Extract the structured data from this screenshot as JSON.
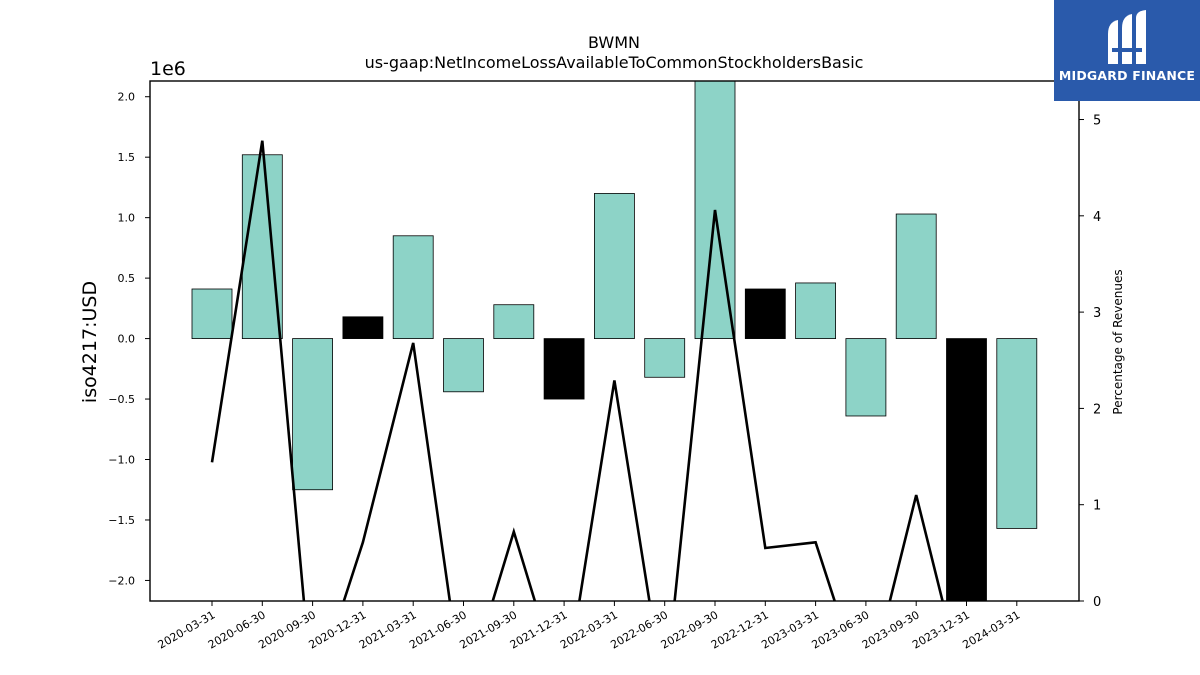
{
  "chart_data": {
    "type": "bar",
    "title": "BWMN",
    "subtitle": "us-gaap:NetIncomeLossAvailableToCommonStockholdersBasic",
    "ylabel": "iso4217:USD",
    "y_scale_label": "1e6",
    "y2label": "Percentage of Revenues",
    "ylim": [
      -2.17,
      2.13
    ],
    "y2lim": [
      0,
      5.4
    ],
    "yticks": [
      "−2.0",
      "−1.5",
      "−1.0",
      "−0.5",
      "0.0",
      "0.5",
      "1.0",
      "1.5",
      "2.0"
    ],
    "ytick_values": [
      -2.0,
      -1.5,
      -1.0,
      -0.5,
      0.0,
      0.5,
      1.0,
      1.5,
      2.0
    ],
    "y2ticks": [
      "0",
      "1",
      "2",
      "3",
      "4",
      "5"
    ],
    "y2tick_values": [
      0,
      1,
      2,
      3,
      4,
      5
    ],
    "categories": [
      "2020-03-31",
      "2020-06-30",
      "2020-09-30",
      "2020-12-31",
      "2021-03-31",
      "2021-06-30",
      "2021-09-30",
      "2021-12-31",
      "2022-03-31",
      "2022-06-30",
      "2022-09-30",
      "2022-12-31",
      "2023-03-31",
      "2023-06-30",
      "2023-09-30",
      "2023-12-31",
      "2024-03-31"
    ],
    "series": [
      {
        "type": "bar",
        "values": [
          0.41,
          1.52,
          -1.25,
          0.18,
          0.85,
          -0.44,
          0.28,
          -0.5,
          1.2,
          -0.32,
          2.2,
          0.41,
          0.46,
          -0.64,
          1.03,
          -2.3,
          -1.57
        ],
        "colors": [
          "#8dd3c7",
          "#8dd3c7",
          "#8dd3c7",
          "#000000",
          "#8dd3c7",
          "#8dd3c7",
          "#8dd3c7",
          "#000000",
          "#8dd3c7",
          "#8dd3c7",
          "#8dd3c7",
          "#000000",
          "#8dd3c7",
          "#8dd3c7",
          "#8dd3c7",
          "#000000",
          "#8dd3c7"
        ]
      },
      {
        "type": "line",
        "axis": "right",
        "color": "#000000",
        "values": [
          1.44,
          4.78,
          -1.0,
          0.61,
          2.68,
          -1.0,
          0.72,
          -1.0,
          2.29,
          -1.0,
          4.06,
          0.55,
          0.61,
          -1.0,
          1.1,
          -1.0,
          null
        ]
      }
    ],
    "grid": false,
    "legend": "none"
  },
  "logo": {
    "name": "MIDGARD FINANCE",
    "color": "#2a5aab"
  }
}
